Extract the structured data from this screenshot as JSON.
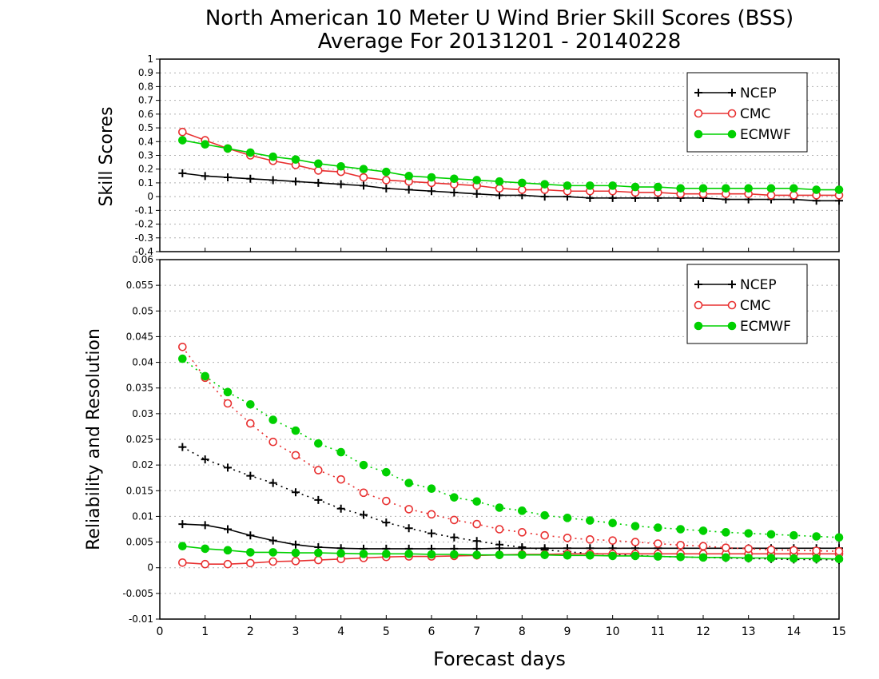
{
  "chart_data": {
    "type": "line",
    "title": "North American 10 Meter U Wind Brier Skill Scores (BSS)",
    "subtitle": "Average For 20131201 - 20140228",
    "xlabel": "Forecast days",
    "xlim": [
      0,
      15
    ],
    "xticks": [
      "0",
      "1",
      "2",
      "3",
      "4",
      "5",
      "6",
      "7",
      "8",
      "9",
      "10",
      "11",
      "12",
      "13",
      "14",
      "15"
    ],
    "x": [
      0.5,
      1,
      1.5,
      2,
      2.5,
      3,
      3.5,
      4,
      4.5,
      5,
      5.5,
      6,
      6.5,
      7,
      7.5,
      8,
      8.5,
      9,
      9.5,
      10,
      10.5,
      11,
      11.5,
      12,
      12.5,
      13,
      13.5,
      14,
      14.5,
      15
    ],
    "colors": {
      "NCEP": "#000000",
      "CMC": "#e83030",
      "ECMWF": "#00d000"
    },
    "panels": [
      {
        "ylabel": "Skill Scores",
        "ylim": [
          -0.4,
          1
        ],
        "yticks": [
          "-0.4",
          "-0.3",
          "-0.2",
          "-0.1",
          "0",
          "0.1",
          "0.2",
          "0.3",
          "0.4",
          "0.5",
          "0.6",
          "0.7",
          "0.8",
          "0.9",
          "1"
        ],
        "grid": true,
        "legend_position": "top-right",
        "legend": [
          "NCEP",
          "CMC",
          "ECMWF"
        ],
        "series": [
          {
            "name": "NCEP",
            "marker": "plus",
            "style": "solid",
            "values": [
              0.17,
              0.15,
              0.14,
              0.13,
              0.12,
              0.11,
              0.1,
              0.09,
              0.08,
              0.06,
              0.05,
              0.04,
              0.03,
              0.02,
              0.01,
              0.01,
              0.0,
              0.0,
              -0.01,
              -0.01,
              -0.01,
              -0.01,
              -0.01,
              -0.01,
              -0.02,
              -0.02,
              -0.02,
              -0.02,
              -0.03,
              -0.03
            ]
          },
          {
            "name": "CMC",
            "marker": "open-circle",
            "style": "solid",
            "values": [
              0.47,
              0.41,
              0.35,
              0.3,
              0.26,
              0.23,
              0.19,
              0.18,
              0.14,
              0.12,
              0.11,
              0.1,
              0.09,
              0.08,
              0.06,
              0.05,
              0.05,
              0.04,
              0.04,
              0.04,
              0.03,
              0.03,
              0.02,
              0.02,
              0.02,
              0.02,
              0.01,
              0.01,
              0.01,
              0.01
            ]
          },
          {
            "name": "ECMWF",
            "marker": "filled-circle",
            "style": "solid",
            "values": [
              0.41,
              0.38,
              0.35,
              0.32,
              0.29,
              0.27,
              0.24,
              0.22,
              0.2,
              0.18,
              0.15,
              0.14,
              0.13,
              0.12,
              0.11,
              0.1,
              0.09,
              0.08,
              0.08,
              0.08,
              0.07,
              0.07,
              0.06,
              0.06,
              0.06,
              0.06,
              0.06,
              0.06,
              0.05,
              0.05
            ]
          }
        ]
      },
      {
        "ylabel": "Reliability and Resolution",
        "ylim": [
          -0.01,
          0.06
        ],
        "yticks": [
          "-0.01",
          "-0.005",
          "0",
          "0.005",
          "0.01",
          "0.015",
          "0.02",
          "0.025",
          "0.03",
          "0.035",
          "0.04",
          "0.045",
          "0.05",
          "0.055",
          "0.06"
        ],
        "grid": true,
        "legend_position": "top-right",
        "legend": [
          "NCEP",
          "CMC",
          "ECMWF"
        ],
        "series": [
          {
            "name": "NCEP",
            "marker": "plus",
            "style": "solid",
            "values": [
              0.0085,
              0.0083,
              0.0075,
              0.0063,
              0.0053,
              0.0045,
              0.004,
              0.0038,
              0.0037,
              0.0037,
              0.0037,
              0.0037,
              0.0037,
              0.0037,
              0.0038,
              0.0038,
              0.0038,
              0.0038,
              0.0038,
              0.0038,
              0.0038,
              0.0038,
              0.0038,
              0.0038,
              0.0038,
              0.0038,
              0.0038,
              0.0038,
              0.0038,
              0.0038
            ]
          },
          {
            "name": "NCEP",
            "marker": "plus",
            "style": "dotted",
            "values": [
              0.0235,
              0.0211,
              0.0195,
              0.0179,
              0.0165,
              0.0147,
              0.0132,
              0.0115,
              0.0103,
              0.0088,
              0.0077,
              0.0067,
              0.0059,
              0.0052,
              0.0045,
              0.004,
              0.0035,
              0.0031,
              0.0028,
              0.0026,
              0.0024,
              0.0022,
              0.0021,
              0.002,
              0.0019,
              0.0018,
              0.0017,
              0.0016,
              0.0016,
              0.0015
            ]
          },
          {
            "name": "CMC",
            "marker": "open-circle",
            "style": "solid",
            "values": [
              0.001,
              0.0007,
              0.0007,
              0.0009,
              0.0012,
              0.0013,
              0.0015,
              0.0017,
              0.0019,
              0.0021,
              0.0022,
              0.0022,
              0.0023,
              0.0024,
              0.0025,
              0.0026,
              0.0026,
              0.0027,
              0.0027,
              0.0027,
              0.0027,
              0.0027,
              0.0027,
              0.0027,
              0.0027,
              0.0027,
              0.0027,
              0.0027,
              0.0027,
              0.0027
            ]
          },
          {
            "name": "CMC",
            "marker": "open-circle",
            "style": "dotted",
            "values": [
              0.043,
              0.037,
              0.032,
              0.0281,
              0.0245,
              0.0219,
              0.019,
              0.0172,
              0.0146,
              0.013,
              0.0114,
              0.0104,
              0.0093,
              0.0085,
              0.0075,
              0.0069,
              0.0063,
              0.0058,
              0.0055,
              0.0053,
              0.005,
              0.0047,
              0.0044,
              0.0042,
              0.0039,
              0.0037,
              0.0035,
              0.0034,
              0.0033,
              0.0032
            ]
          },
          {
            "name": "ECMWF",
            "marker": "filled-circle",
            "style": "solid",
            "values": [
              0.0042,
              0.0037,
              0.0034,
              0.003,
              0.003,
              0.0029,
              0.0029,
              0.0028,
              0.0027,
              0.0027,
              0.0027,
              0.0026,
              0.0026,
              0.0025,
              0.0025,
              0.0025,
              0.0025,
              0.0024,
              0.0024,
              0.0023,
              0.0023,
              0.0022,
              0.0021,
              0.002,
              0.002,
              0.0019,
              0.0019,
              0.0018,
              0.0018,
              0.0017
            ]
          },
          {
            "name": "ECMWF",
            "marker": "filled-circle",
            "style": "dotted",
            "values": [
              0.0407,
              0.0373,
              0.0342,
              0.0318,
              0.0288,
              0.0267,
              0.0242,
              0.0225,
              0.02,
              0.0186,
              0.0165,
              0.0154,
              0.0137,
              0.0129,
              0.0117,
              0.0111,
              0.0102,
              0.0097,
              0.0092,
              0.0087,
              0.0081,
              0.0078,
              0.0075,
              0.0072,
              0.0069,
              0.0067,
              0.0065,
              0.0063,
              0.0061,
              0.0059
            ]
          }
        ]
      }
    ]
  }
}
